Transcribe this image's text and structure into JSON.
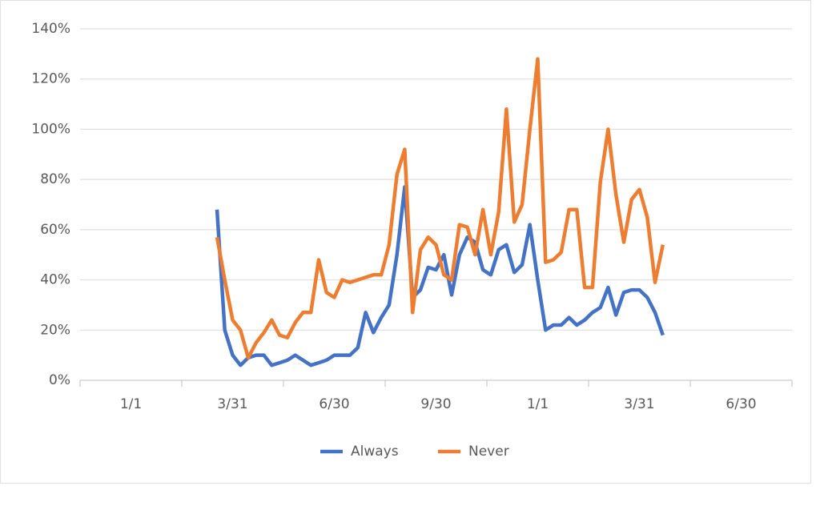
{
  "chart_data": {
    "type": "line",
    "categories": [
      null,
      null,
      null,
      null,
      null,
      null,
      "1/1",
      null,
      null,
      null,
      null,
      null,
      null,
      null,
      null,
      null,
      null,
      null,
      null,
      "3/31",
      null,
      null,
      null,
      null,
      null,
      null,
      null,
      null,
      null,
      null,
      null,
      null,
      "6/30",
      null,
      null,
      null,
      null,
      null,
      null,
      null,
      null,
      null,
      null,
      null,
      null,
      "9/30",
      null,
      null,
      null,
      null,
      null,
      null,
      null,
      null,
      null,
      null,
      null,
      null,
      "1/1",
      null,
      null,
      null,
      null,
      null,
      null,
      null,
      null,
      null,
      null,
      null,
      null,
      "3/31",
      null,
      null,
      null,
      null,
      null,
      null,
      null,
      null,
      null,
      null,
      null,
      null,
      "6/30",
      null,
      null,
      null,
      null,
      null,
      null
    ],
    "series": [
      {
        "name": "Always",
        "color": "#4472c4",
        "values": [
          null,
          null,
          null,
          null,
          null,
          null,
          null,
          null,
          null,
          null,
          null,
          null,
          null,
          null,
          null,
          null,
          null,
          68,
          20,
          10,
          6,
          9,
          10,
          10,
          6,
          7,
          8,
          10,
          8,
          6,
          7,
          8,
          10,
          10,
          10,
          13,
          27,
          19,
          25,
          30,
          50,
          77,
          33,
          36,
          45,
          44,
          50,
          34,
          50,
          57,
          55,
          44,
          42,
          52,
          54,
          43,
          46,
          62,
          40,
          20,
          22,
          22,
          25,
          22,
          24,
          27,
          29,
          37,
          26,
          35,
          36,
          36,
          33,
          27,
          18,
          null,
          null,
          null,
          null,
          null,
          null,
          null,
          null,
          null,
          null,
          null,
          null,
          null,
          null,
          null,
          null
        ]
      },
      {
        "name": "Never",
        "color": "#ed7d31",
        "values": [
          null,
          null,
          null,
          null,
          null,
          null,
          null,
          null,
          null,
          null,
          null,
          null,
          null,
          null,
          null,
          null,
          null,
          57,
          40,
          24,
          20,
          9,
          15,
          19,
          24,
          18,
          17,
          23,
          27,
          27,
          48,
          35,
          33,
          40,
          39,
          40,
          41,
          42,
          42,
          54,
          82,
          92,
          27,
          52,
          57,
          54,
          42,
          40,
          62,
          61,
          50,
          68,
          50,
          67,
          108,
          63,
          70,
          100,
          128,
          47,
          48,
          51,
          68,
          68,
          37,
          37,
          79,
          100,
          74,
          55,
          72,
          76,
          65,
          39,
          54,
          null,
          null,
          null,
          null,
          null,
          null,
          null,
          null,
          null,
          null,
          null,
          null,
          null,
          null,
          null,
          null
        ]
      }
    ],
    "ylim": [
      0,
      140
    ],
    "yticks": [
      {
        "value": 0,
        "label": "0%"
      },
      {
        "value": 20,
        "label": "20%"
      },
      {
        "value": 40,
        "label": "40%"
      },
      {
        "value": 60,
        "label": "60%"
      },
      {
        "value": 80,
        "label": "80%"
      },
      {
        "value": 100,
        "label": "100%"
      },
      {
        "value": 120,
        "label": "120%"
      },
      {
        "value": 140,
        "label": "140%"
      }
    ],
    "grid": true,
    "legend": "bottom"
  }
}
